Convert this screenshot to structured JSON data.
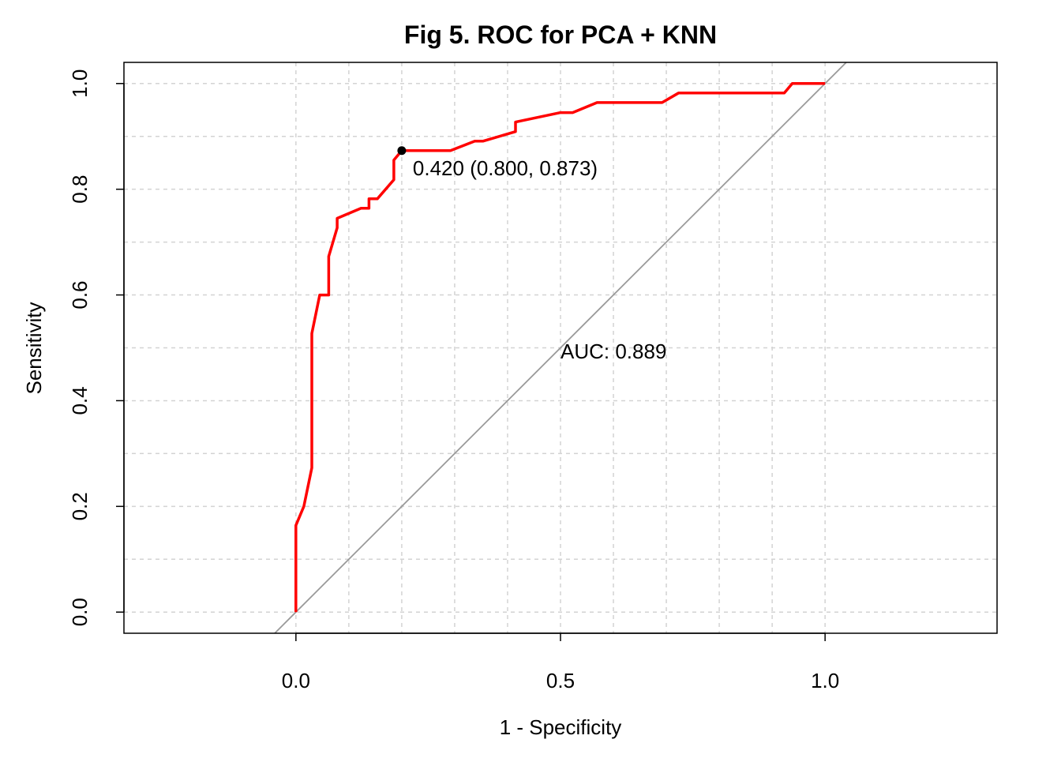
{
  "chart_data": {
    "type": "line",
    "title": "Fig 5. ROC for PCA + KNN",
    "xlabel": "1 - Specificity",
    "ylabel": "Sensitivity",
    "xlim": [
      -0.325,
      1.325
    ],
    "ylim": [
      -0.04,
      1.04
    ],
    "x_ticks": [
      0.0,
      0.5,
      1.0
    ],
    "x_tick_labels": [
      "0.0",
      "0.5",
      "1.0"
    ],
    "y_ticks": [
      0.0,
      0.2,
      0.4,
      0.6,
      0.8,
      1.0
    ],
    "y_tick_labels": [
      "0.0",
      "0.2",
      "0.4",
      "0.6",
      "0.8",
      "1.0"
    ],
    "x_grid": [
      0.0,
      0.1,
      0.2,
      0.3,
      0.4,
      0.5,
      0.6,
      0.7,
      0.8,
      0.9,
      1.0
    ],
    "y_grid": [
      0.0,
      0.1,
      0.2,
      0.3,
      0.4,
      0.5,
      0.6,
      0.7,
      0.8,
      0.9,
      1.0
    ],
    "grid": true,
    "series": [
      {
        "color": "#ff0000",
        "x": [
          0.0,
          0.0,
          0.015,
          0.03,
          0.03,
          0.045,
          0.062,
          0.062,
          0.078,
          0.078,
          0.123,
          0.138,
          0.138,
          0.154,
          0.185,
          0.185,
          0.2,
          0.292,
          0.338,
          0.354,
          0.415,
          0.415,
          0.5,
          0.523,
          0.569,
          0.692,
          0.723,
          0.923,
          0.938,
          1.0
        ],
        "y": [
          0.0,
          0.164,
          0.2,
          0.273,
          0.527,
          0.6,
          0.6,
          0.673,
          0.727,
          0.745,
          0.764,
          0.764,
          0.782,
          0.782,
          0.818,
          0.855,
          0.873,
          0.873,
          0.891,
          0.891,
          0.909,
          0.927,
          0.945,
          0.945,
          0.964,
          0.964,
          0.982,
          0.982,
          1.0,
          1.0
        ]
      }
    ],
    "reference_line": {
      "color": "#9a9a9a",
      "x": [
        -0.04,
        1.04
      ],
      "y": [
        -0.04,
        1.04
      ]
    },
    "threshold_point": {
      "x": 0.2,
      "y": 0.873,
      "color": "#000000",
      "label": "0.420 (0.800, 0.873)"
    },
    "auc_annotation": {
      "text": "AUC: 0.889",
      "color": "#ff0000",
      "x": 0.5,
      "y": 0.48
    }
  }
}
